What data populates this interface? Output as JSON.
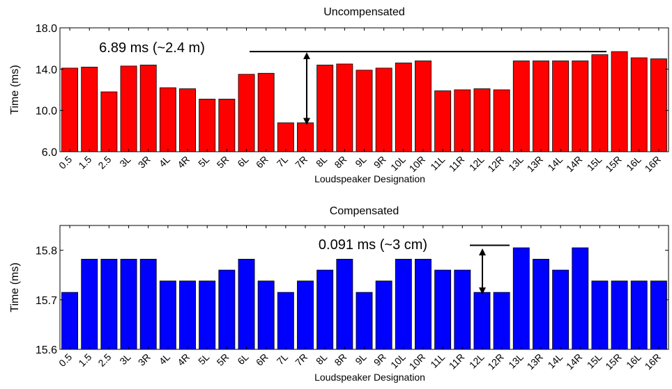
{
  "chart_data": [
    {
      "type": "bar",
      "title": "Uncompensated",
      "xlabel": "Loudspeaker Designation",
      "ylabel": "Time (ms)",
      "ylim": [
        6.0,
        18.0
      ],
      "yticks": [
        "6.0",
        "10.0",
        "14.0",
        "18.0"
      ],
      "ytick_values": [
        6.0,
        10.0,
        14.0,
        18.0
      ],
      "bar_color": "#ff0000",
      "categories": [
        "0.5",
        "1.5",
        "2.5",
        "3L",
        "3R",
        "4L",
        "4R",
        "5L",
        "5R",
        "6L",
        "6R",
        "7L",
        "7R",
        "8L",
        "8R",
        "9L",
        "9R",
        "10L",
        "10R",
        "11L",
        "11R",
        "12L",
        "12R",
        "13L",
        "13R",
        "14L",
        "14R",
        "15L",
        "15R",
        "16L",
        "16R"
      ],
      "values": [
        14.1,
        14.2,
        11.8,
        14.3,
        14.4,
        12.2,
        12.1,
        11.1,
        11.1,
        13.5,
        13.6,
        8.8,
        8.8,
        14.4,
        14.5,
        13.9,
        14.1,
        14.6,
        14.8,
        11.9,
        12.0,
        12.1,
        12.0,
        14.8,
        14.8,
        14.8,
        14.8,
        15.4,
        15.7,
        15.1,
        15.0
      ],
      "annotation": {
        "text": "6.89 ms (~2.4 m)",
        "reference_value": 15.7,
        "arrow_from": 15.7,
        "arrow_to": 8.8
      },
      "grid": false,
      "legend": "none"
    },
    {
      "type": "bar",
      "title": "Compensated",
      "xlabel": "Loudspeaker Designation",
      "ylabel": "Time (ms)",
      "ylim": [
        15.6,
        15.85
      ],
      "yticks": [
        "15.6",
        "15.7",
        "15.8"
      ],
      "ytick_values": [
        15.6,
        15.7,
        15.8
      ],
      "bar_color": "#0000ff",
      "categories": [
        "0.5",
        "1.5",
        "2.5",
        "3L",
        "3R",
        "4L",
        "4R",
        "5L",
        "5R",
        "6L",
        "6R",
        "7L",
        "7R",
        "8L",
        "8R",
        "9L",
        "9R",
        "10L",
        "10R",
        "11L",
        "11R",
        "12L",
        "12R",
        "13L",
        "13R",
        "14L",
        "14R",
        "15L",
        "15R",
        "16L",
        "16R"
      ],
      "values": [
        15.715,
        15.782,
        15.782,
        15.782,
        15.782,
        15.738,
        15.738,
        15.738,
        15.76,
        15.782,
        15.738,
        15.715,
        15.738,
        15.76,
        15.782,
        15.715,
        15.738,
        15.782,
        15.782,
        15.76,
        15.76,
        15.715,
        15.715,
        15.805,
        15.782,
        15.76,
        15.805,
        15.738,
        15.738,
        15.738,
        15.738
      ],
      "annotation": {
        "text": "0.091 ms (~3 cm)",
        "reference_value": 15.81,
        "arrow_from": 15.805,
        "arrow_to": 15.715
      },
      "grid": false,
      "legend": "none"
    }
  ]
}
